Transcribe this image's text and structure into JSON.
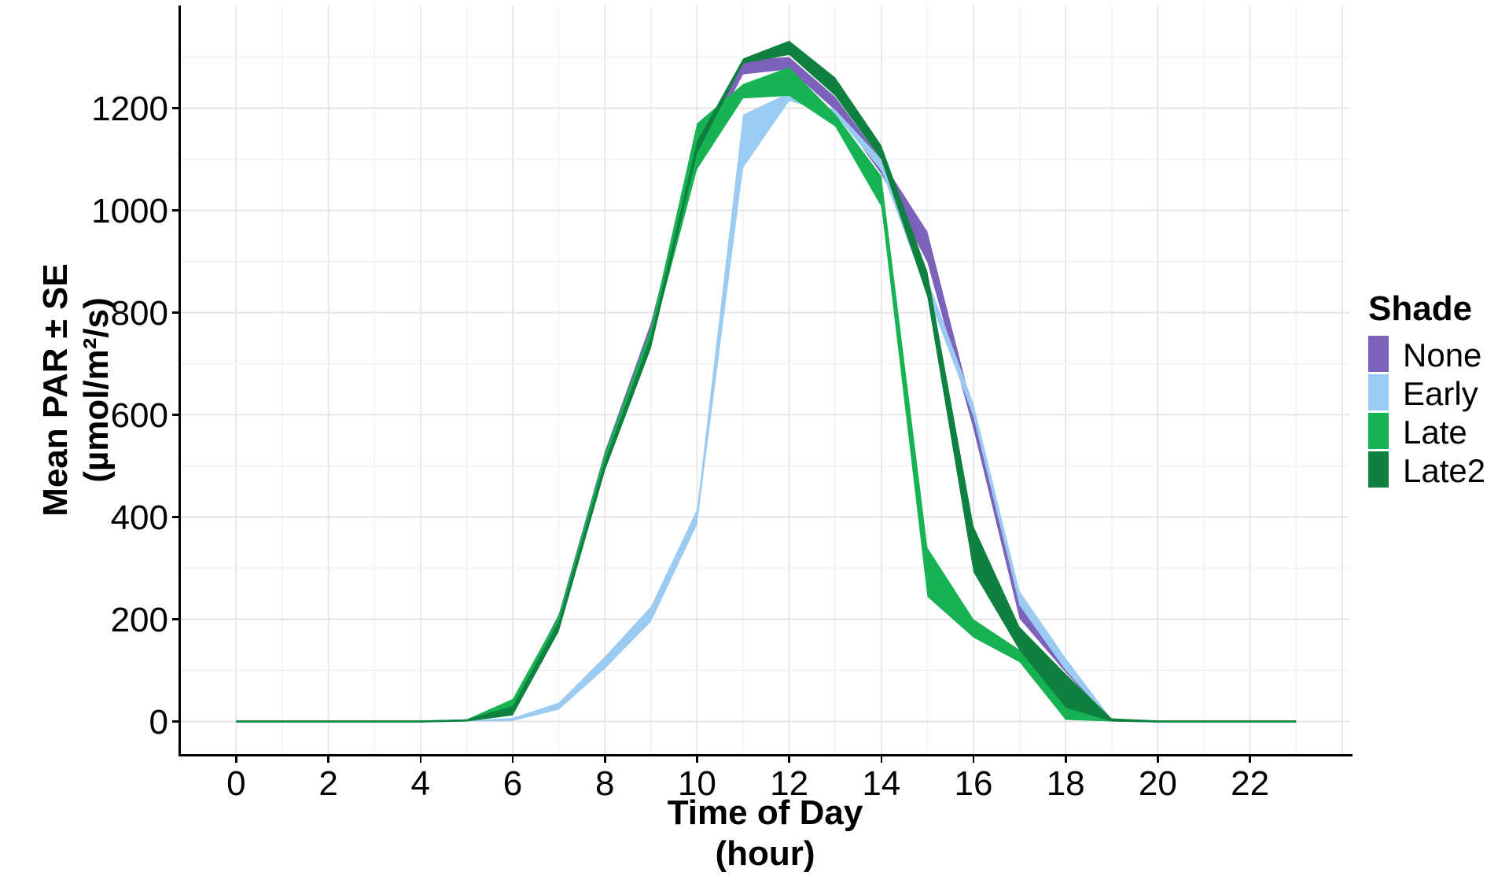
{
  "axis": {
    "x_title_line1": "Time of Day",
    "x_title_line2": "(hour)",
    "y_title_line1": "Mean PAR ± SE",
    "y_title_line2": "(µmol/m²/s)"
  },
  "legend": {
    "title": "Shade",
    "items": [
      {
        "label": "None",
        "color": "#7D62BC"
      },
      {
        "label": "Early",
        "color": "#9BCBF1"
      },
      {
        "label": "Late",
        "color": "#17B251"
      },
      {
        "label": "Late2",
        "color": "#0E8040"
      }
    ]
  },
  "chart_data": {
    "type": "area",
    "subtype": "ribbon-mean-plus-minus-se",
    "title": "",
    "xlabel": "Time of Day (hour)",
    "ylabel": "Mean PAR ± SE (µmol/m²/s)",
    "x": [
      0,
      1,
      2,
      3,
      4,
      5,
      6,
      7,
      8,
      9,
      10,
      11,
      12,
      13,
      14,
      15,
      16,
      17,
      18,
      19,
      20,
      21,
      22,
      23
    ],
    "x_ticks": [
      0,
      2,
      4,
      6,
      8,
      10,
      12,
      14,
      16,
      18,
      20,
      22
    ],
    "y_ticks": [
      0,
      200,
      400,
      600,
      800,
      1000,
      1200
    ],
    "xlim": [
      0,
      23
    ],
    "ylim": [
      0,
      1400
    ],
    "grid": true,
    "legend_position": "right",
    "legend_title": "Shade",
    "series": [
      {
        "name": "None",
        "color": "#7D62BC",
        "mean": [
          0,
          0,
          0,
          0,
          0,
          2,
          25,
          195,
          510,
          760,
          1115,
          1280,
          1288,
          1209,
          1085,
          928,
          588,
          214,
          108,
          2,
          0,
          0,
          0,
          0
        ],
        "se": [
          2,
          2,
          2,
          2,
          2,
          2,
          10,
          15,
          18,
          20,
          20,
          14,
          12,
          13,
          14,
          30,
          16,
          13,
          12,
          2,
          2,
          2,
          2,
          2
        ]
      },
      {
        "name": "Early",
        "color": "#9BCBF1",
        "mean": [
          0,
          0,
          0,
          0,
          0,
          1,
          4,
          30,
          115,
          210,
          400,
          1135,
          1222,
          1192,
          1089,
          852,
          609,
          241,
          112,
          2,
          0,
          0,
          0,
          0
        ],
        "se": [
          2,
          2,
          2,
          2,
          2,
          1,
          3,
          7,
          12,
          15,
          15,
          52,
          8,
          5,
          11,
          15,
          13,
          14,
          12,
          2,
          2,
          2,
          2,
          2
        ]
      },
      {
        "name": "Late",
        "color": "#17B251",
        "mean": [
          0,
          0,
          0,
          0,
          0,
          2,
          28,
          192,
          508,
          755,
          1125,
          1233,
          1252,
          1176,
          1037,
          292,
          182,
          128,
          15,
          3,
          0,
          0,
          0,
          0
        ],
        "se": [
          2,
          2,
          2,
          2,
          2,
          2,
          16,
          15,
          16,
          15,
          45,
          14,
          28,
          12,
          30,
          48,
          18,
          12,
          12,
          3,
          2,
          2,
          2,
          2
        ]
      },
      {
        "name": "Late2",
        "color": "#0E8040",
        "mean": [
          0,
          0,
          0,
          0,
          0,
          2,
          21,
          186,
          500,
          742,
          1123,
          1292,
          1318,
          1242,
          1113,
          855,
          337,
          162,
          60,
          3,
          0,
          0,
          0,
          0
        ],
        "se": [
          2,
          2,
          2,
          2,
          2,
          2,
          9,
          10,
          10,
          12,
          12,
          5,
          14,
          18,
          14,
          25,
          45,
          23,
          33,
          3,
          2,
          2,
          2,
          2
        ]
      }
    ]
  },
  "layout_colors": {
    "background": "#FFFFFF",
    "grid_major": "#E3E3E3",
    "grid_minor": "#EFEFEF",
    "axis": "#000000"
  }
}
